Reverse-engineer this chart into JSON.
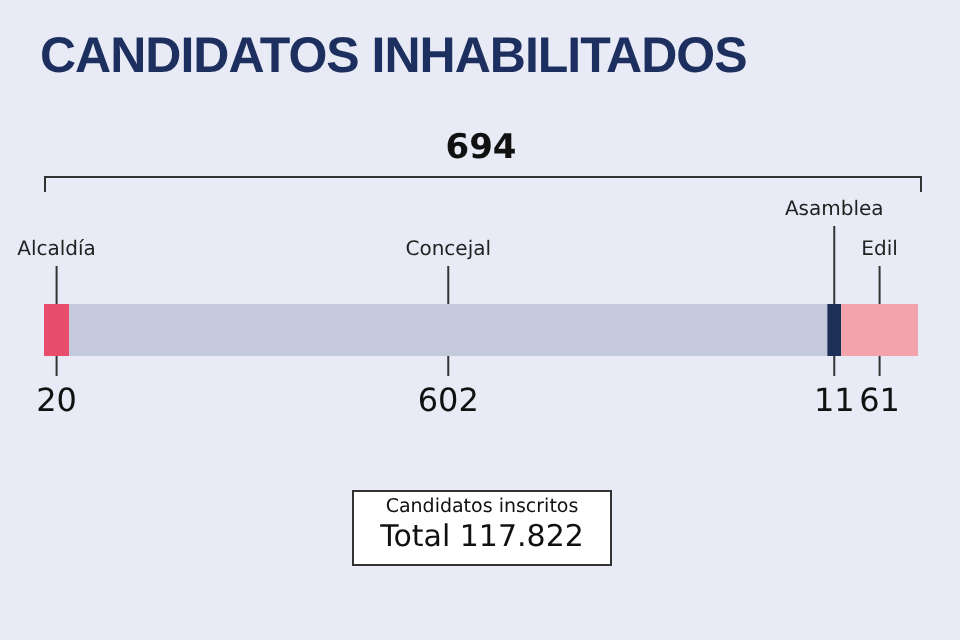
{
  "chart_data": {
    "type": "bar",
    "orientation": "horizontal",
    "stacked": true,
    "title": "CANDIDATOS INHABILITADOS",
    "categories": [
      null
    ],
    "series": [
      {
        "name": "Alcaldía",
        "color": "#e84d6b",
        "values": [
          20
        ]
      },
      {
        "name": "Concejal",
        "color": "#c4c9dc",
        "values": [
          602
        ]
      },
      {
        "name": "Asamblea",
        "color": "#1c2f57",
        "values": [
          11
        ]
      },
      {
        "name": "Edil",
        "color": "#f2a3ab",
        "values": [
          61
        ]
      }
    ],
    "xlim": [
      0,
      694
    ],
    "data_labels": true,
    "annotations": [
      "Candidatos inscritos",
      "Total 117.822",
      "694"
    ]
  }
}
